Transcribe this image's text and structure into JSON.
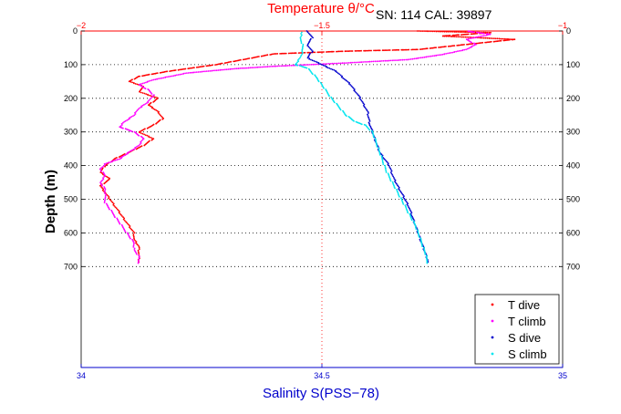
{
  "chart_data": {
    "type": "scatter",
    "title": "SN: 114  CAL: 39897",
    "xlabel": "Salinity S(PSS−78)",
    "ylabel": "Depth (m)",
    "x2label": "Temperature θ/°C",
    "xlim": [
      34,
      35
    ],
    "x2lim": [
      -2,
      -1
    ],
    "ylim": [
      0,
      1000
    ],
    "y_reversed": true,
    "x_ticks": [
      34,
      34.5,
      35
    ],
    "x_tick_labels": [
      "34",
      "34.5",
      "35"
    ],
    "x2_ticks": [
      -2,
      -1.5,
      -1
    ],
    "x2_tick_labels": [
      "−2",
      "−1.5",
      "−1"
    ],
    "y_ticks": [
      0,
      100,
      200,
      300,
      400,
      500,
      600,
      700
    ],
    "y_tick_labels": [
      "0",
      "100",
      "200",
      "300",
      "400",
      "500",
      "600",
      "700"
    ],
    "grid": "dotted horizontal at depth ticks; vertical at 34.5",
    "legend_position": "bottom-right",
    "colors": {
      "T dive": "#ff0000",
      "T climb": "#ff00ff",
      "S dive": "#0000cc",
      "S climb": "#00e5ee",
      "temperature_axis": "#ff0000",
      "salinity_axis": "#0000cc"
    },
    "series": [
      {
        "name": "T dive",
        "axis": "temperature",
        "points": [
          [
            -1.3,
            0
          ],
          [
            -1.15,
            5
          ],
          [
            -1.25,
            15
          ],
          [
            -1.1,
            25
          ],
          [
            -1.2,
            40
          ],
          [
            -1.3,
            55
          ],
          [
            -1.45,
            60
          ],
          [
            -1.6,
            68
          ],
          [
            -1.72,
            100
          ],
          [
            -1.82,
            120
          ],
          [
            -1.88,
            135
          ],
          [
            -1.9,
            150
          ],
          [
            -1.87,
            165
          ],
          [
            -1.88,
            180
          ],
          [
            -1.84,
            200
          ],
          [
            -1.86,
            220
          ],
          [
            -1.84,
            240
          ],
          [
            -1.83,
            260
          ],
          [
            -1.85,
            280
          ],
          [
            -1.88,
            300
          ],
          [
            -1.85,
            320
          ],
          [
            -1.87,
            340
          ],
          [
            -1.9,
            360
          ],
          [
            -1.93,
            380
          ],
          [
            -1.95,
            400
          ],
          [
            -1.96,
            420
          ],
          [
            -1.94,
            440
          ],
          [
            -1.96,
            460
          ],
          [
            -1.95,
            480
          ],
          [
            -1.94,
            500
          ],
          [
            -1.93,
            520
          ],
          [
            -1.92,
            540
          ],
          [
            -1.91,
            560
          ],
          [
            -1.9,
            580
          ],
          [
            -1.89,
            600
          ],
          [
            -1.89,
            620
          ],
          [
            -1.88,
            640
          ],
          [
            -1.88,
            660
          ],
          [
            -1.88,
            680
          ],
          [
            -1.88,
            690
          ]
        ]
      },
      {
        "name": "T climb",
        "axis": "temperature",
        "points": [
          [
            -1.88,
            690
          ],
          [
            -1.88,
            670
          ],
          [
            -1.89,
            650
          ],
          [
            -1.89,
            630
          ],
          [
            -1.9,
            610
          ],
          [
            -1.91,
            590
          ],
          [
            -1.92,
            570
          ],
          [
            -1.93,
            550
          ],
          [
            -1.94,
            530
          ],
          [
            -1.95,
            510
          ],
          [
            -1.95,
            490
          ],
          [
            -1.95,
            470
          ],
          [
            -1.96,
            450
          ],
          [
            -1.95,
            430
          ],
          [
            -1.96,
            410
          ],
          [
            -1.95,
            395
          ],
          [
            -1.92,
            380
          ],
          [
            -1.9,
            360
          ],
          [
            -1.88,
            340
          ],
          [
            -1.87,
            320
          ],
          [
            -1.89,
            300
          ],
          [
            -1.92,
            285
          ],
          [
            -1.91,
            270
          ],
          [
            -1.89,
            250
          ],
          [
            -1.88,
            230
          ],
          [
            -1.86,
            210
          ],
          [
            -1.85,
            190
          ],
          [
            -1.86,
            175
          ],
          [
            -1.88,
            160
          ],
          [
            -1.85,
            145
          ],
          [
            -1.78,
            125
          ],
          [
            -1.68,
            112
          ],
          [
            -1.6,
            105
          ],
          [
            -1.45,
            95
          ],
          [
            -1.32,
            85
          ],
          [
            -1.25,
            70
          ],
          [
            -1.2,
            55
          ],
          [
            -1.18,
            40
          ],
          [
            -1.2,
            25
          ],
          [
            -1.15,
            10
          ],
          [
            -1.2,
            0
          ]
        ]
      },
      {
        "name": "S dive",
        "axis": "salinity",
        "points": [
          [
            34.47,
            0
          ],
          [
            34.48,
            20
          ],
          [
            34.47,
            40
          ],
          [
            34.48,
            60
          ],
          [
            34.47,
            80
          ],
          [
            34.5,
            100
          ],
          [
            34.53,
            120
          ],
          [
            34.56,
            160
          ],
          [
            34.58,
            200
          ],
          [
            34.595,
            240
          ],
          [
            34.6,
            280
          ],
          [
            34.61,
            320
          ],
          [
            34.62,
            360
          ],
          [
            34.64,
            400
          ],
          [
            34.65,
            440
          ],
          [
            34.665,
            480
          ],
          [
            34.68,
            520
          ],
          [
            34.69,
            560
          ],
          [
            34.7,
            600
          ],
          [
            34.71,
            640
          ],
          [
            34.72,
            680
          ],
          [
            34.72,
            690
          ]
        ]
      },
      {
        "name": "S climb",
        "axis": "salinity",
        "points": [
          [
            34.72,
            690
          ],
          [
            34.715,
            660
          ],
          [
            34.705,
            620
          ],
          [
            34.695,
            580
          ],
          [
            34.68,
            540
          ],
          [
            34.665,
            500
          ],
          [
            34.65,
            460
          ],
          [
            34.635,
            420
          ],
          [
            34.625,
            380
          ],
          [
            34.615,
            340
          ],
          [
            34.605,
            300
          ],
          [
            34.59,
            280
          ],
          [
            34.57,
            270
          ],
          [
            34.55,
            250
          ],
          [
            34.535,
            225
          ],
          [
            34.52,
            200
          ],
          [
            34.505,
            170
          ],
          [
            34.49,
            140
          ],
          [
            34.47,
            110
          ],
          [
            34.445,
            100
          ],
          [
            34.455,
            80
          ],
          [
            34.46,
            60
          ],
          [
            34.46,
            40
          ],
          [
            34.455,
            20
          ],
          [
            34.46,
            0
          ]
        ]
      }
    ]
  }
}
